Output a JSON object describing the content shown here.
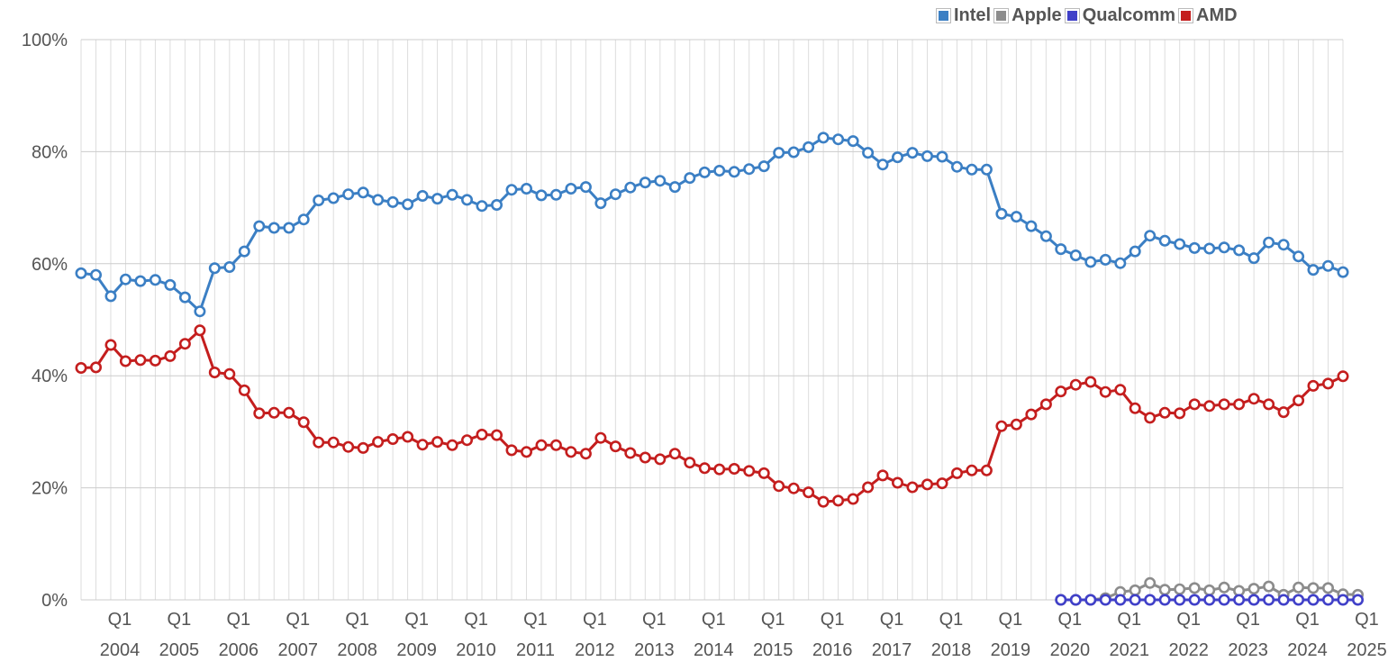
{
  "chart_data": {
    "type": "line",
    "title": "",
    "xlabel": "",
    "ylabel": "",
    "ylim": [
      0,
      100
    ],
    "y_ticks": [
      "0%",
      "20%",
      "40%",
      "60%",
      "80%",
      "100%"
    ],
    "x_tick_labels": [
      "Q1",
      "Q1",
      "Q1",
      "Q1",
      "Q1",
      "Q1",
      "Q1",
      "Q1",
      "Q1",
      "Q1",
      "Q1",
      "Q1",
      "Q1",
      "Q1",
      "Q1",
      "Q1",
      "Q1",
      "Q1",
      "Q1",
      "Q1",
      "Q1",
      "Q1"
    ],
    "x_year_labels": [
      "2004",
      "2005",
      "2006",
      "2007",
      "2008",
      "2009",
      "2010",
      "2011",
      "2012",
      "2013",
      "2014",
      "2015",
      "2016",
      "2017",
      "2018",
      "2019",
      "2020",
      "2021",
      "2022",
      "2023",
      "2024",
      "2025"
    ],
    "grid": "on",
    "legend_placement": "top-right",
    "series": [
      {
        "name": "Intel",
        "color": "#3b7fc4",
        "start_quarter": 0,
        "values": [
          58.3,
          58.0,
          54.2,
          57.2,
          56.9,
          57.1,
          56.2,
          54.0,
          51.5,
          59.2,
          59.4,
          62.2,
          66.7,
          66.4,
          66.4,
          67.9,
          71.3,
          71.7,
          72.4,
          72.7,
          71.4,
          71.0,
          70.6,
          72.1,
          71.6,
          72.3,
          71.4,
          70.3,
          70.5,
          73.2,
          73.4,
          72.2,
          72.3,
          73.4,
          73.7,
          70.8,
          72.4,
          73.6,
          74.5,
          74.8,
          73.7,
          75.3,
          76.3,
          76.6,
          76.4,
          76.9,
          77.4,
          79.8,
          79.9,
          80.8,
          82.5,
          82.2,
          81.9,
          79.8,
          77.7,
          79.0,
          79.8,
          79.2,
          79.1,
          77.3,
          76.8,
          76.8,
          68.9,
          68.4,
          66.7,
          64.9,
          62.6,
          61.5,
          60.3,
          60.7,
          60.1,
          62.2,
          65.0,
          64.1,
          63.5,
          62.8,
          62.7,
          62.9,
          62.4,
          61.0,
          63.8,
          63.4,
          61.3,
          58.9,
          59.6,
          58.5
        ]
      },
      {
        "name": "Apple",
        "color": "#8c8c8c",
        "start_quarter": 66,
        "values": [
          0.0,
          0.0,
          0.0,
          0.3,
          1.4,
          1.7,
          3.0,
          1.8,
          1.9,
          2.1,
          1.7,
          2.2,
          1.6,
          2.0,
          2.4,
          0.9,
          2.2,
          2.1,
          2.1,
          1.0,
          0.9
        ]
      },
      {
        "name": "Qualcomm",
        "color": "#4040c8",
        "start_quarter": 66,
        "values": [
          0,
          0,
          0,
          0,
          0,
          0,
          0,
          0,
          0,
          0,
          0,
          0,
          0,
          0,
          0,
          0,
          0,
          0,
          0,
          0,
          0
        ]
      },
      {
        "name": "AMD",
        "color": "#c41e1e",
        "start_quarter": 0,
        "values": [
          41.4,
          41.5,
          45.5,
          42.6,
          42.8,
          42.7,
          43.5,
          45.7,
          48.1,
          40.6,
          40.3,
          37.4,
          33.3,
          33.4,
          33.4,
          31.7,
          28.1,
          28.1,
          27.3,
          27.1,
          28.2,
          28.7,
          29.1,
          27.7,
          28.2,
          27.6,
          28.5,
          29.5,
          29.4,
          26.7,
          26.4,
          27.6,
          27.6,
          26.4,
          26.1,
          28.9,
          27.4,
          26.2,
          25.4,
          25.1,
          26.1,
          24.5,
          23.5,
          23.3,
          23.4,
          23.0,
          22.6,
          20.3,
          19.9,
          19.2,
          17.5,
          17.7,
          18.0,
          20.1,
          22.2,
          20.9,
          20.1,
          20.6,
          20.8,
          22.6,
          23.1,
          23.1,
          31.0,
          31.3,
          33.1,
          34.9,
          37.2,
          38.4,
          38.9,
          37.1,
          37.5,
          34.2,
          32.5,
          33.4,
          33.3,
          34.9,
          34.6,
          34.9,
          34.9,
          35.9,
          34.9,
          33.5,
          35.6,
          38.2,
          38.6,
          39.9
        ]
      }
    ]
  }
}
